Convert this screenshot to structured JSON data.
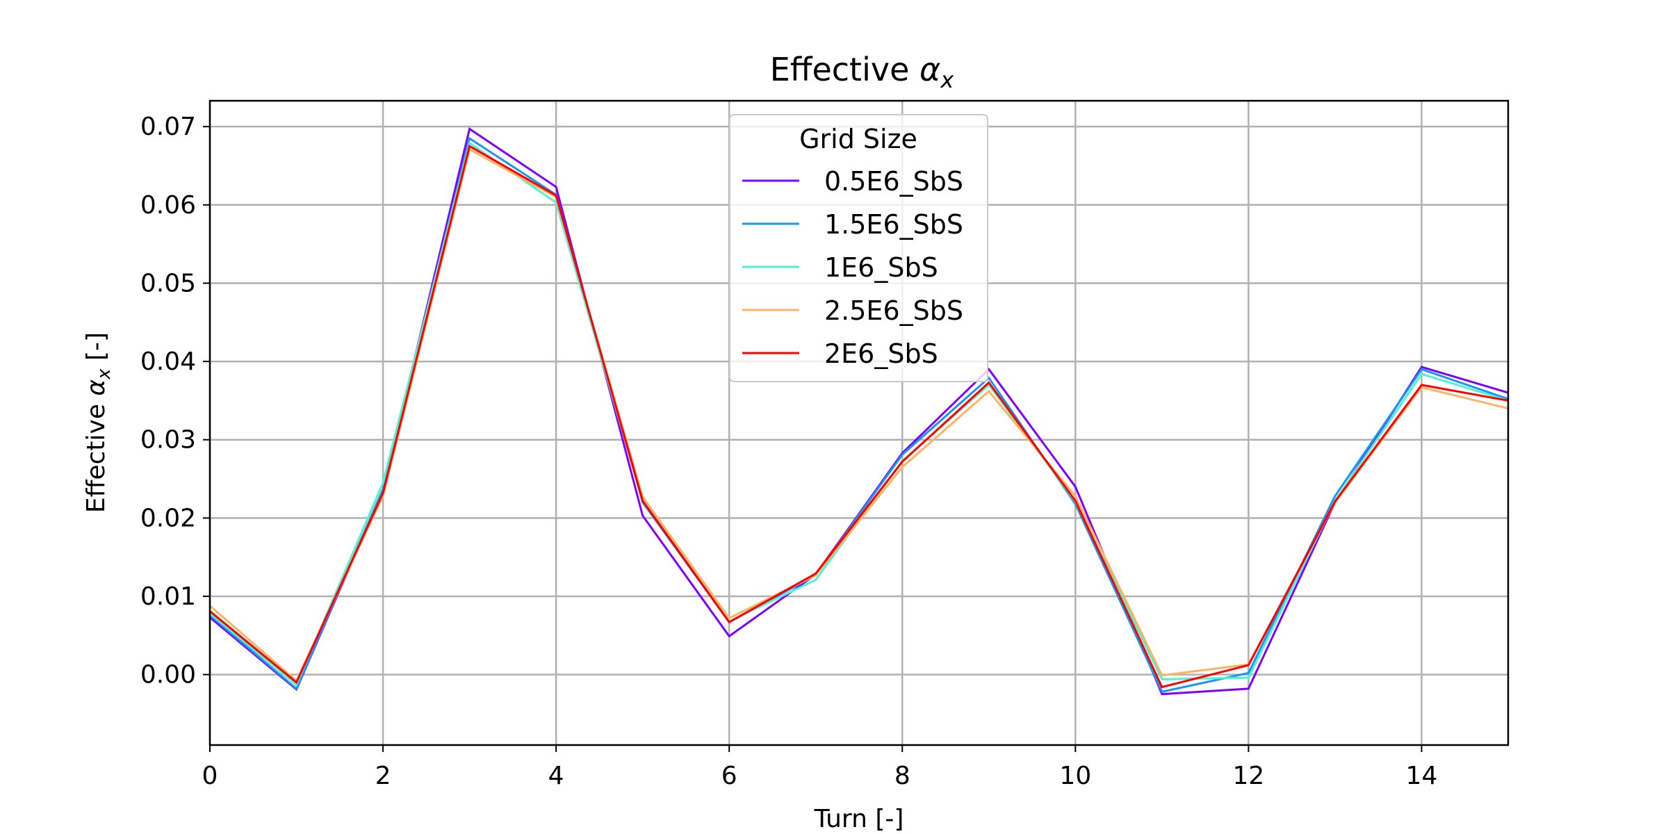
{
  "chart_data": {
    "type": "line",
    "title_prefix": "Effective ",
    "title_symbol": "α",
    "title_subscript": "x",
    "xlabel": "Turn [-]",
    "ylabel_prefix": "Effective ",
    "ylabel_symbol": "α",
    "ylabel_subscript": "x",
    "ylabel_suffix": " [-]",
    "xlim": [
      0,
      15
    ],
    "ylim": [
      -0.009,
      0.0733
    ],
    "xticks": [
      0,
      2,
      4,
      6,
      8,
      10,
      12,
      14
    ],
    "xtick_labels": [
      "0",
      "2",
      "4",
      "6",
      "8",
      "10",
      "12",
      "14"
    ],
    "yticks": [
      0.0,
      0.01,
      0.02,
      0.03,
      0.04,
      0.05,
      0.06,
      0.07
    ],
    "ytick_labels": [
      "0.00",
      "0.01",
      "0.02",
      "0.03",
      "0.04",
      "0.05",
      "0.06",
      "0.07"
    ],
    "grid": true,
    "legend_title": "Grid Size",
    "legend_position": "upper-center",
    "x": [
      0,
      1,
      2,
      3,
      4,
      5,
      6,
      7,
      8,
      9,
      10,
      11,
      12,
      13,
      14,
      15
    ],
    "series": [
      {
        "name": "0.5E6_SbS",
        "color": "#8000ff",
        "values": [
          0.0073,
          -0.0019,
          0.0235,
          0.0697,
          0.0623,
          0.0203,
          0.0049,
          0.0128,
          0.0283,
          0.039,
          0.024,
          -0.0025,
          -0.0018,
          0.022,
          0.0393,
          0.036
        ]
      },
      {
        "name": "1.5E6_SbS",
        "color": "#1996f3",
        "values": [
          0.0076,
          -0.0018,
          0.0237,
          0.0685,
          0.0613,
          0.022,
          0.0067,
          0.0127,
          0.0281,
          0.0379,
          0.0218,
          -0.0022,
          0.0002,
          0.0228,
          0.039,
          0.0352
        ]
      },
      {
        "name": "1E6_SbS",
        "color": "#4df3ce",
        "values": [
          0.0078,
          -0.0013,
          0.0245,
          0.0679,
          0.0603,
          0.0222,
          0.0068,
          0.0121,
          0.0273,
          0.037,
          0.0221,
          -0.0006,
          -0.0004,
          0.0222,
          0.0384,
          0.035
        ]
      },
      {
        "name": "2.5E6_SbS",
        "color": "#ffb360",
        "values": [
          0.0088,
          -0.0008,
          0.0228,
          0.0671,
          0.061,
          0.0227,
          0.0072,
          0.0127,
          0.0265,
          0.0362,
          0.0228,
          -0.0001,
          0.0013,
          0.022,
          0.0367,
          0.034
        ]
      },
      {
        "name": "2E6_SbS",
        "color": "#ff0000",
        "values": [
          0.0081,
          -0.001,
          0.0232,
          0.0675,
          0.0612,
          0.0222,
          0.0067,
          0.0129,
          0.0272,
          0.0373,
          0.0222,
          -0.0016,
          0.0012,
          0.0221,
          0.037,
          0.035
        ]
      }
    ]
  }
}
